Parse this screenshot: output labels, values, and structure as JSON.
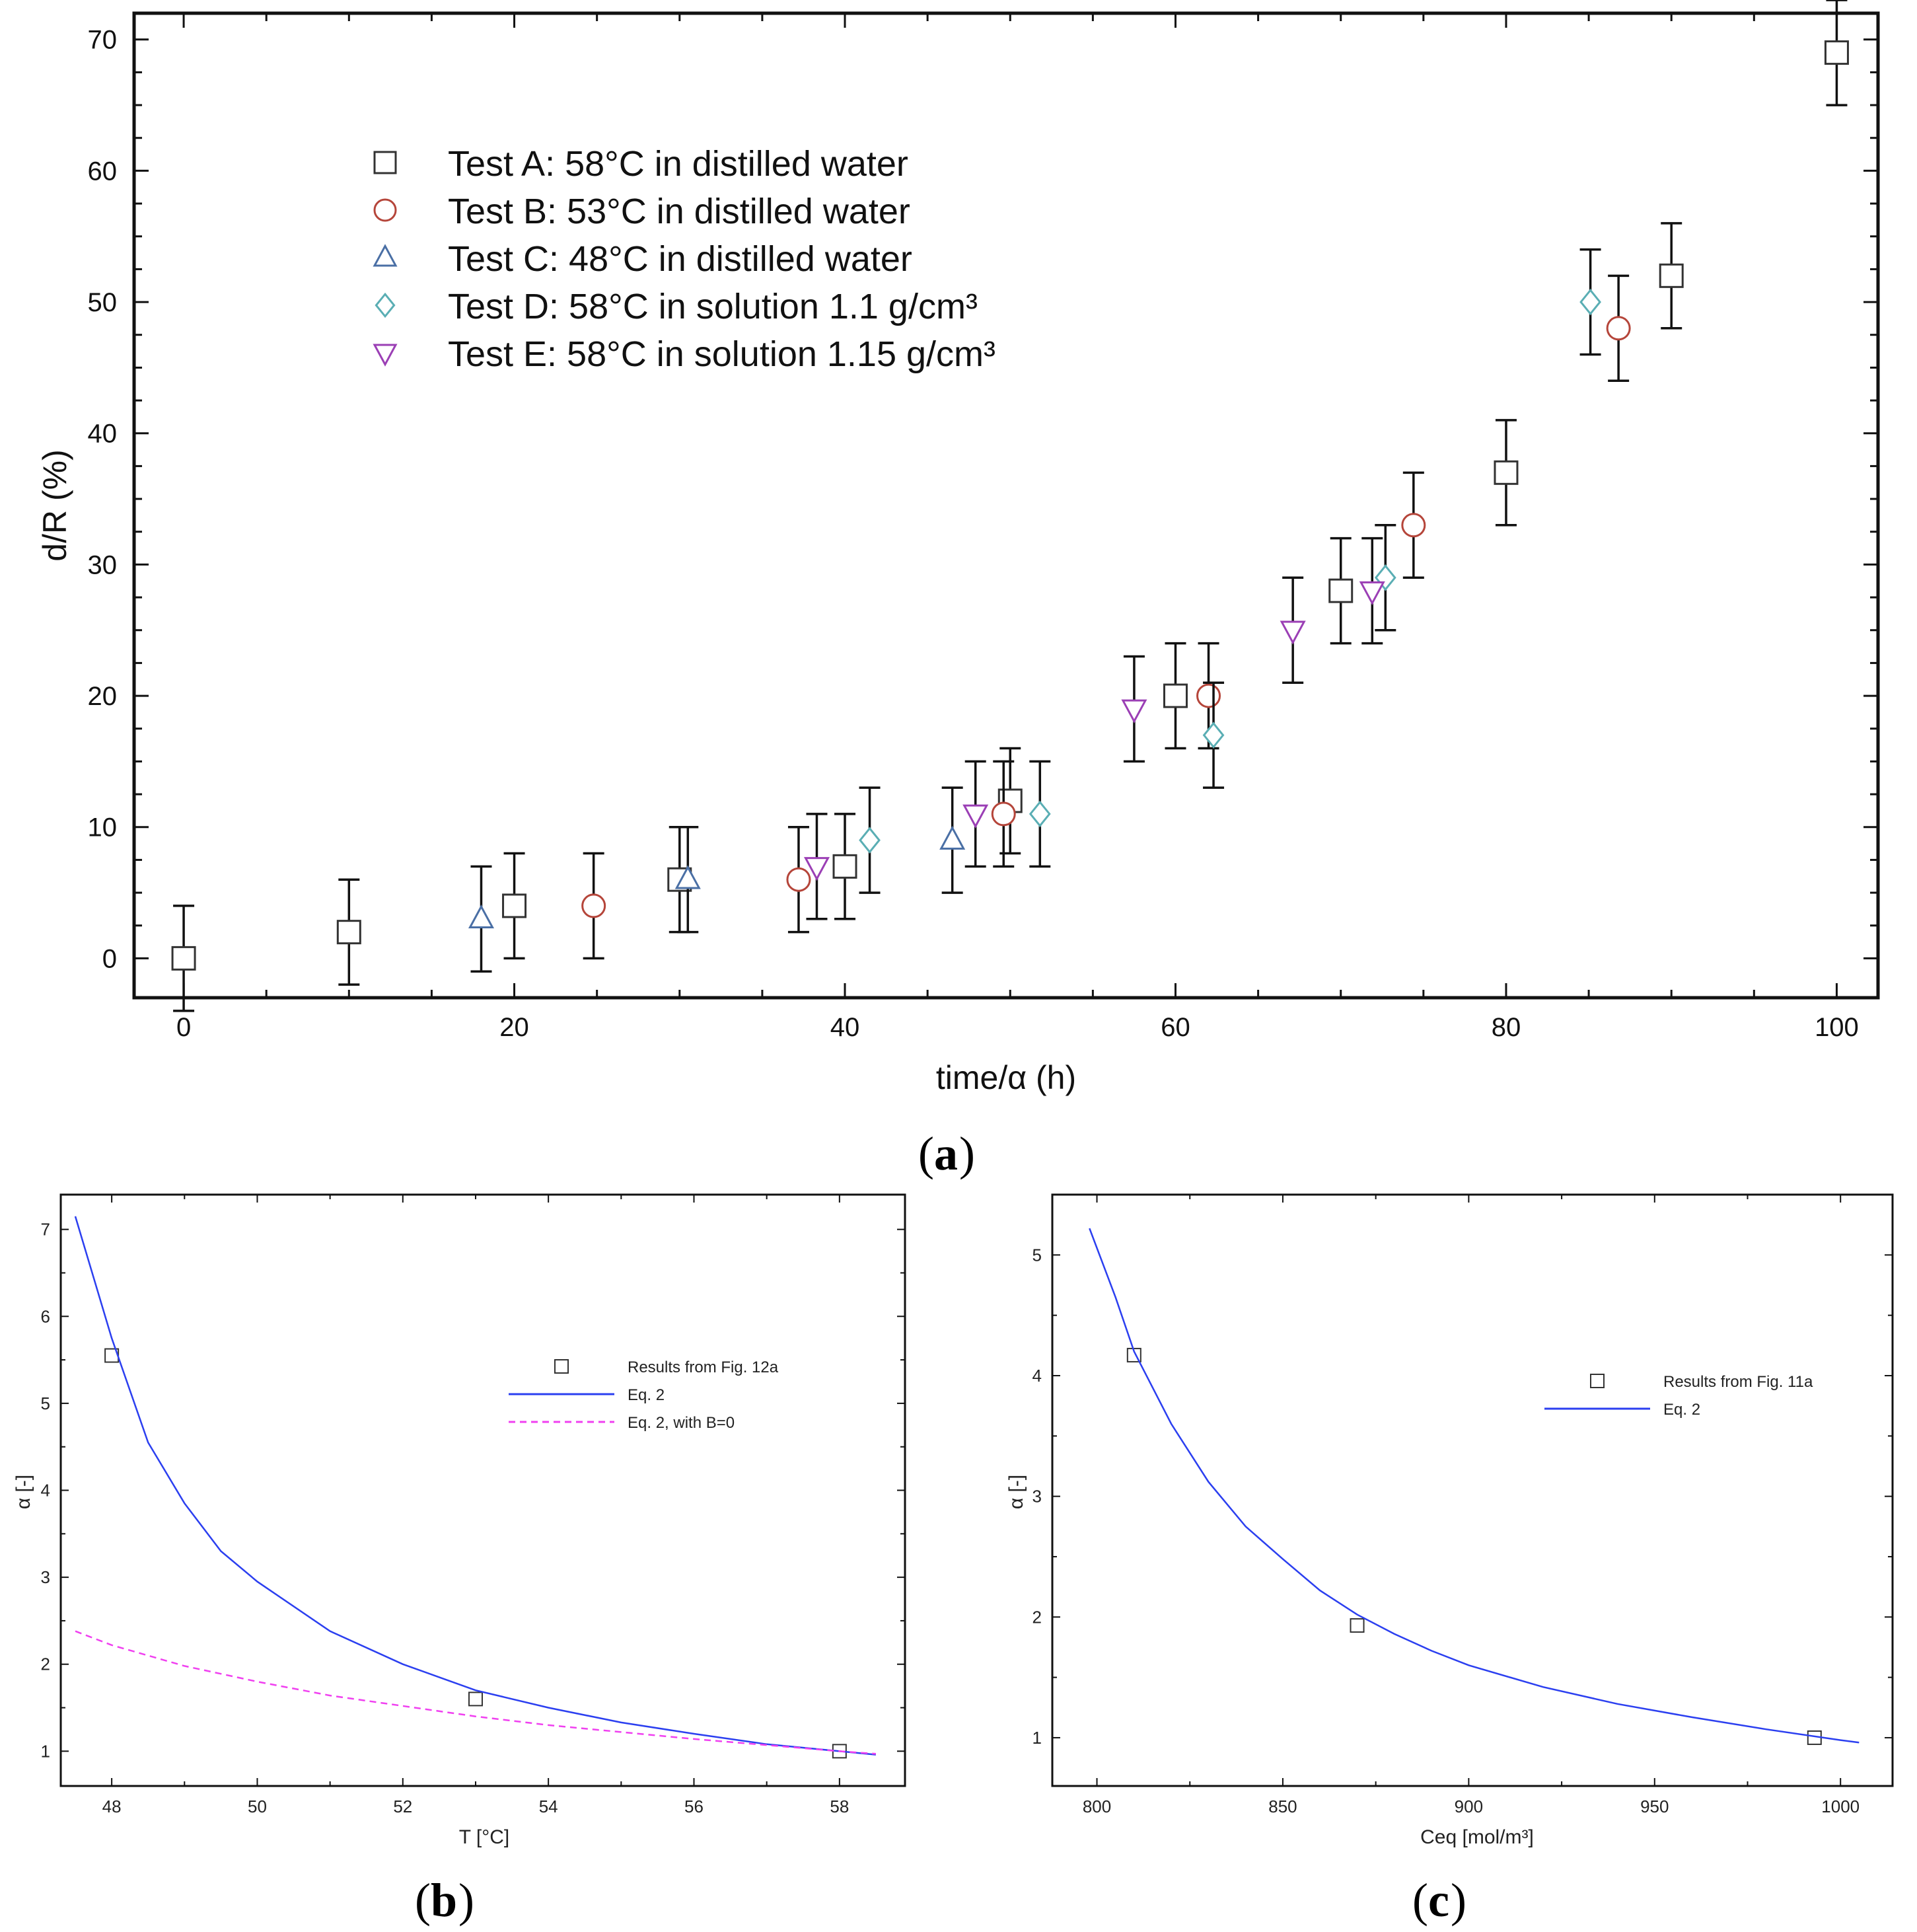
{
  "panels": {
    "a": "a",
    "b": "b",
    "c": "c"
  },
  "colors": {
    "test_a": "#333333",
    "test_b": "#b5453a",
    "test_c": "#4a6fa5",
    "test_d": "#5aaeb4",
    "test_e": "#9b3fb5",
    "eq2": "#2b3ff0",
    "eq2_b0": "#f040f0",
    "frame": "#111111"
  },
  "chart_data": [
    {
      "id": "a",
      "type": "scatter",
      "xlabel": "time/α (h)",
      "ylabel": "d/R (%)",
      "xlim": [
        -3,
        102.5
      ],
      "ylim": [
        -3,
        72
      ],
      "xticks": [
        0,
        20,
        40,
        60,
        80,
        100
      ],
      "yticks": [
        0,
        10,
        20,
        30,
        40,
        50,
        60,
        70
      ],
      "legend_position": "top-left",
      "series": [
        {
          "name": "Test A: 58°C in distilled water",
          "marker": "square",
          "color_key": "test_a",
          "points": [
            {
              "x": 0,
              "y": 0,
              "err": 4
            },
            {
              "x": 10,
              "y": 2,
              "err": 4
            },
            {
              "x": 20,
              "y": 4,
              "err": 4
            },
            {
              "x": 30,
              "y": 6,
              "err": 4
            },
            {
              "x": 40,
              "y": 7,
              "err": 4
            },
            {
              "x": 50,
              "y": 12,
              "err": 4
            },
            {
              "x": 60,
              "y": 20,
              "err": 4
            },
            {
              "x": 70,
              "y": 28,
              "err": 4
            },
            {
              "x": 80,
              "y": 37,
              "err": 4
            },
            {
              "x": 90,
              "y": 52,
              "err": 4
            },
            {
              "x": 100,
              "y": 69,
              "err": 4
            }
          ]
        },
        {
          "name": "Test B: 53°C in distilled water",
          "marker": "circle",
          "color_key": "test_b",
          "points": [
            {
              "x": 24.8,
              "y": 4,
              "err": 4
            },
            {
              "x": 37.2,
              "y": 6,
              "err": 4
            },
            {
              "x": 49.6,
              "y": 11,
              "err": 4
            },
            {
              "x": 62,
              "y": 20,
              "err": 4
            },
            {
              "x": 74.4,
              "y": 33,
              "err": 4
            },
            {
              "x": 86.8,
              "y": 48,
              "err": 4
            }
          ]
        },
        {
          "name": "Test C: 48°C in distilled water",
          "marker": "triangle-up",
          "color_key": "test_c",
          "points": [
            {
              "x": 18,
              "y": 3,
              "err": 4
            },
            {
              "x": 30.5,
              "y": 6,
              "err": 4
            },
            {
              "x": 46.5,
              "y": 9,
              "err": 4
            }
          ]
        },
        {
          "name": "Test D: 58°C in solution 1.1 g/cm³",
          "marker": "diamond",
          "color_key": "test_d",
          "points": [
            {
              "x": 41.5,
              "y": 9,
              "err": 4
            },
            {
              "x": 51.8,
              "y": 11,
              "err": 4
            },
            {
              "x": 62.3,
              "y": 17,
              "err": 4
            },
            {
              "x": 72.7,
              "y": 29,
              "err": 4
            },
            {
              "x": 85.1,
              "y": 50,
              "err": 4
            }
          ]
        },
        {
          "name": "Test E: 58°C in solution 1.15 g/cm³",
          "marker": "triangle-down",
          "color_key": "test_e",
          "points": [
            {
              "x": 38.3,
              "y": 7,
              "err": 4
            },
            {
              "x": 47.9,
              "y": 11,
              "err": 4
            },
            {
              "x": 57.5,
              "y": 19,
              "err": 4
            },
            {
              "x": 67.1,
              "y": 25,
              "err": 4
            },
            {
              "x": 71.9,
              "y": 28,
              "err": 4
            }
          ]
        }
      ]
    },
    {
      "id": "b",
      "type": "line",
      "xlabel": "T [°C]",
      "ylabel": "α [-]",
      "xlim": [
        47.3,
        58.9
      ],
      "ylim": [
        0.6,
        7.4
      ],
      "xticks": [
        48,
        50,
        52,
        54,
        56,
        58
      ],
      "yticks": [
        1,
        2,
        3,
        4,
        5,
        6,
        7
      ],
      "legend_position": "right",
      "series": [
        {
          "name": "Results from Fig. 12a",
          "kind": "markers",
          "color_key": "test_a",
          "x": [
            48,
            53,
            58
          ],
          "y": [
            5.55,
            1.6,
            1.0
          ]
        },
        {
          "name": "Eq. 2",
          "kind": "line",
          "color_key": "eq2",
          "x": [
            47.5,
            48,
            48.5,
            49,
            49.5,
            50,
            51,
            52,
            53,
            54,
            55,
            56,
            57,
            58,
            58.5
          ],
          "y": [
            7.15,
            5.75,
            4.55,
            3.85,
            3.3,
            2.95,
            2.38,
            2.0,
            1.7,
            1.5,
            1.33,
            1.2,
            1.08,
            1.0,
            0.96
          ]
        },
        {
          "name": "Eq. 2, with B=0",
          "kind": "dashed",
          "color_key": "eq2_b0",
          "x": [
            47.5,
            48,
            49,
            50,
            51,
            52,
            53,
            54,
            55,
            56,
            57,
            58,
            58.5
          ],
          "y": [
            2.38,
            2.22,
            1.98,
            1.8,
            1.64,
            1.52,
            1.4,
            1.3,
            1.22,
            1.14,
            1.07,
            1.0,
            0.97
          ]
        }
      ]
    },
    {
      "id": "c",
      "type": "line",
      "xlabel": "Ceq [mol/m³]",
      "ylabel": "α [-]",
      "xlim": [
        788,
        1014
      ],
      "ylim": [
        0.6,
        5.5
      ],
      "xticks": [
        800,
        850,
        900,
        950,
        1000
      ],
      "yticks": [
        1,
        2,
        3,
        4,
        5
      ],
      "legend_position": "right",
      "series": [
        {
          "name": "Results from Fig. 11a",
          "kind": "markers",
          "color_key": "test_a",
          "x": [
            810,
            870,
            993
          ],
          "y": [
            4.17,
            1.93,
            1.0
          ]
        },
        {
          "name": "Eq. 2",
          "kind": "line",
          "color_key": "eq2",
          "x": [
            798,
            805,
            810,
            820,
            830,
            840,
            850,
            860,
            870,
            880,
            890,
            900,
            920,
            940,
            960,
            980,
            1000,
            1005
          ],
          "y": [
            5.22,
            4.65,
            4.2,
            3.6,
            3.12,
            2.75,
            2.48,
            2.22,
            2.02,
            1.86,
            1.72,
            1.6,
            1.42,
            1.28,
            1.17,
            1.07,
            0.98,
            0.96
          ]
        }
      ]
    }
  ]
}
